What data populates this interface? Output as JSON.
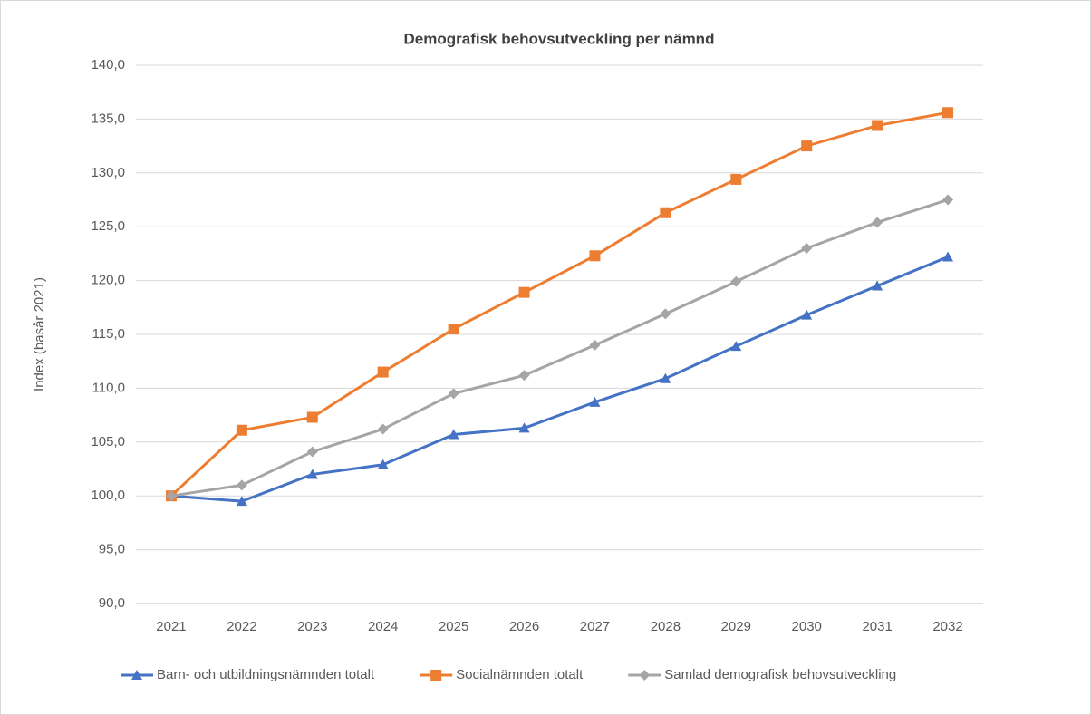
{
  "chart_data": {
    "type": "line",
    "title": "Demografisk behovsutveckling per nämnd",
    "y_label": "Index (basår 2021)",
    "categories": [
      "2021",
      "2022",
      "2023",
      "2024",
      "2025",
      "2026",
      "2027",
      "2028",
      "2029",
      "2030",
      "2031",
      "2032"
    ],
    "series": [
      {
        "name": "Barn- och utbildningsnämnden totalt",
        "color": "#4472c4",
        "marker": "triangle",
        "values": [
          100.0,
          99.5,
          102.0,
          102.9,
          105.7,
          106.3,
          108.7,
          110.9,
          113.9,
          116.8,
          119.5,
          122.2
        ]
      },
      {
        "name": "Socialnämnden totalt",
        "color": "#ed7d31",
        "marker": "square",
        "values": [
          100.0,
          106.1,
          107.3,
          111.5,
          115.5,
          118.9,
          122.3,
          126.3,
          129.4,
          132.5,
          134.4,
          135.6
        ]
      },
      {
        "name": "Samlad demografisk behovsutveckling",
        "color": "#a5a5a5",
        "marker": "diamond",
        "values": [
          100.0,
          101.0,
          104.1,
          106.2,
          109.5,
          111.2,
          114.0,
          116.9,
          119.9,
          123.0,
          125.4,
          127.5
        ]
      }
    ],
    "ylim": [
      90,
      140
    ],
    "yticks": [
      {
        "value": 90,
        "label": "90,0"
      },
      {
        "value": 95,
        "label": "95,0"
      },
      {
        "value": 100,
        "label": "100,0"
      },
      {
        "value": 105,
        "label": "105,0"
      },
      {
        "value": 110,
        "label": "110,0"
      },
      {
        "value": 115,
        "label": "115,0"
      },
      {
        "value": 120,
        "label": "120,0"
      },
      {
        "value": 125,
        "label": "125,0"
      },
      {
        "value": 130,
        "label": "130,0"
      },
      {
        "value": 135,
        "label": "135,0"
      },
      {
        "value": 140,
        "label": "140,0"
      }
    ],
    "grid": true,
    "legend": "bottom"
  }
}
